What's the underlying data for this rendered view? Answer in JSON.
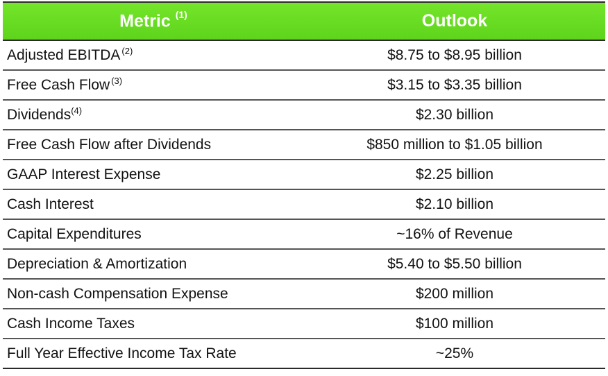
{
  "header": {
    "metric_label": "Metric",
    "metric_footnote": "(1)",
    "outlook_label": "Outlook"
  },
  "rows": [
    {
      "metric": "Adjusted EBITDA",
      "footnote": "(2)",
      "outlook": "$8.75 to $8.95 billion"
    },
    {
      "metric": "Free Cash Flow",
      "footnote": "(3)",
      "outlook": "$3.15 to $3.35 billion"
    },
    {
      "metric": "Dividends",
      "footnote": "(4)",
      "outlook": "$2.30 billion"
    },
    {
      "metric": "Free Cash Flow after Dividends",
      "footnote": "",
      "outlook": "$850 million to $1.05 billion"
    },
    {
      "metric": "GAAP Interest Expense",
      "footnote": "",
      "outlook": "$2.25 billion"
    },
    {
      "metric": "Cash Interest",
      "footnote": "",
      "outlook": "$2.10 billion"
    },
    {
      "metric": "Capital Expenditures",
      "footnote": "",
      "outlook": "~16% of Revenue"
    },
    {
      "metric": "Depreciation & Amortization",
      "footnote": "",
      "outlook": "$5.40 to $5.50 billion"
    },
    {
      "metric": "Non-cash Compensation Expense",
      "footnote": "",
      "outlook": "$200 million"
    },
    {
      "metric": "Cash Income Taxes",
      "footnote": "",
      "outlook": "$100 million"
    },
    {
      "metric": "Full Year Effective Income Tax Rate",
      "footnote": "",
      "outlook": "~25%"
    }
  ],
  "colors": {
    "header_background": "#66dd22",
    "header_text": "#ffffff",
    "rule_lines": "#555555"
  }
}
